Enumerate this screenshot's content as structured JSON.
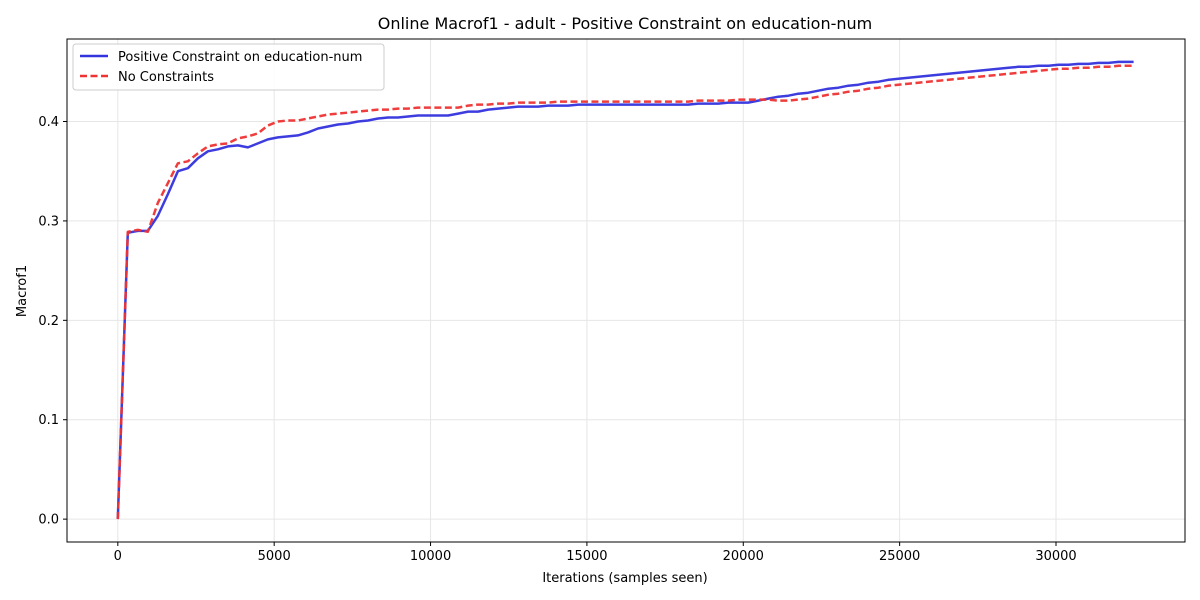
{
  "chart_data": {
    "type": "line",
    "title": "Online Macrof1 - adult - Positive Constraint on education-num",
    "xlabel": "Iterations (samples seen)",
    "ylabel": "Macrof1",
    "xlim": [
      -1625,
      34125
    ],
    "ylim": [
      -0.023,
      0.483
    ],
    "xticks": [
      0,
      5000,
      10000,
      15000,
      20000,
      25000,
      30000
    ],
    "xtick_labels": [
      "0",
      "5000",
      "10000",
      "15000",
      "20000",
      "25000",
      "30000"
    ],
    "yticks": [
      0.0,
      0.1,
      0.2,
      0.3,
      0.4
    ],
    "ytick_labels": [
      "0.0",
      "0.1",
      "0.2",
      "0.3",
      "0.4"
    ],
    "grid": true,
    "legend_position": "top-left",
    "series": [
      {
        "name": "Positive Constraint on education-num",
        "color": "#3333dd",
        "style": "solid",
        "x": [
          0,
          320,
          640,
          960,
          1280,
          1600,
          1920,
          2240,
          2560,
          2880,
          3200,
          3520,
          3840,
          4160,
          4480,
          4800,
          5120,
          5440,
          5760,
          6080,
          6400,
          6720,
          7040,
          7360,
          7680,
          8000,
          8320,
          8640,
          8960,
          9280,
          9600,
          9920,
          10240,
          10560,
          10880,
          11200,
          11520,
          11840,
          12160,
          12480,
          12800,
          13120,
          13440,
          13760,
          14080,
          14400,
          14720,
          15040,
          15360,
          15680,
          16000,
          16320,
          16640,
          16960,
          17280,
          17600,
          17920,
          18240,
          18560,
          18880,
          19200,
          19520,
          19840,
          20160,
          20480,
          20800,
          21120,
          21440,
          21760,
          22080,
          22400,
          22720,
          23040,
          23360,
          23680,
          24000,
          24320,
          24640,
          24960,
          25280,
          25600,
          25920,
          26240,
          26560,
          26880,
          27200,
          27520,
          27840,
          28160,
          28480,
          28800,
          29120,
          29440,
          29760,
          30080,
          30400,
          30720,
          31040,
          31360,
          31680,
          32000,
          32320,
          32480
        ],
        "values": [
          0.0,
          0.288,
          0.29,
          0.29,
          0.305,
          0.327,
          0.35,
          0.353,
          0.363,
          0.37,
          0.372,
          0.375,
          0.376,
          0.374,
          0.378,
          0.382,
          0.384,
          0.385,
          0.386,
          0.389,
          0.393,
          0.395,
          0.397,
          0.398,
          0.4,
          0.401,
          0.403,
          0.404,
          0.404,
          0.405,
          0.406,
          0.406,
          0.406,
          0.406,
          0.408,
          0.41,
          0.41,
          0.412,
          0.413,
          0.414,
          0.415,
          0.415,
          0.415,
          0.416,
          0.416,
          0.416,
          0.417,
          0.417,
          0.417,
          0.417,
          0.417,
          0.417,
          0.417,
          0.417,
          0.417,
          0.417,
          0.417,
          0.417,
          0.418,
          0.418,
          0.418,
          0.419,
          0.419,
          0.419,
          0.421,
          0.423,
          0.425,
          0.426,
          0.428,
          0.429,
          0.431,
          0.433,
          0.434,
          0.436,
          0.437,
          0.439,
          0.44,
          0.442,
          0.443,
          0.444,
          0.445,
          0.446,
          0.447,
          0.448,
          0.449,
          0.45,
          0.451,
          0.452,
          0.453,
          0.454,
          0.455,
          0.455,
          0.456,
          0.456,
          0.457,
          0.457,
          0.458,
          0.458,
          0.459,
          0.459,
          0.46,
          0.46,
          0.46
        ]
      },
      {
        "name": "No Constraints",
        "color": "#ee3333",
        "style": "dashed",
        "x": [
          0,
          320,
          640,
          960,
          1280,
          1600,
          1920,
          2240,
          2560,
          2880,
          3200,
          3520,
          3840,
          4160,
          4480,
          4800,
          5120,
          5440,
          5760,
          6080,
          6400,
          6720,
          7040,
          7360,
          7680,
          8000,
          8320,
          8640,
          8960,
          9280,
          9600,
          9920,
          10240,
          10560,
          10880,
          11200,
          11520,
          11840,
          12160,
          12480,
          12800,
          13120,
          13440,
          13760,
          14080,
          14400,
          14720,
          15040,
          15360,
          15680,
          16000,
          16320,
          16640,
          16960,
          17280,
          17600,
          17920,
          18240,
          18560,
          18880,
          19200,
          19520,
          19840,
          20160,
          20480,
          20800,
          21120,
          21440,
          21760,
          22080,
          22400,
          22720,
          23040,
          23360,
          23680,
          24000,
          24320,
          24640,
          24960,
          25280,
          25600,
          25920,
          26240,
          26560,
          26880,
          27200,
          27520,
          27840,
          28160,
          28480,
          28800,
          29120,
          29440,
          29760,
          30080,
          30400,
          30720,
          31040,
          31360,
          31680,
          32000,
          32320,
          32480
        ],
        "values": [
          0.0,
          0.289,
          0.291,
          0.289,
          0.318,
          0.338,
          0.358,
          0.36,
          0.368,
          0.375,
          0.377,
          0.378,
          0.383,
          0.385,
          0.388,
          0.396,
          0.4,
          0.401,
          0.401,
          0.403,
          0.405,
          0.407,
          0.408,
          0.409,
          0.41,
          0.411,
          0.412,
          0.412,
          0.413,
          0.413,
          0.414,
          0.414,
          0.414,
          0.414,
          0.414,
          0.416,
          0.417,
          0.417,
          0.418,
          0.418,
          0.419,
          0.419,
          0.419,
          0.419,
          0.42,
          0.42,
          0.42,
          0.42,
          0.42,
          0.42,
          0.42,
          0.42,
          0.42,
          0.42,
          0.42,
          0.42,
          0.42,
          0.42,
          0.421,
          0.421,
          0.421,
          0.421,
          0.422,
          0.422,
          0.422,
          0.422,
          0.421,
          0.421,
          0.422,
          0.423,
          0.425,
          0.427,
          0.428,
          0.43,
          0.431,
          0.433,
          0.434,
          0.436,
          0.437,
          0.438,
          0.439,
          0.44,
          0.441,
          0.442,
          0.443,
          0.444,
          0.445,
          0.446,
          0.447,
          0.448,
          0.449,
          0.45,
          0.451,
          0.452,
          0.453,
          0.453,
          0.454,
          0.454,
          0.455,
          0.455,
          0.456,
          0.456,
          0.456
        ]
      }
    ]
  }
}
